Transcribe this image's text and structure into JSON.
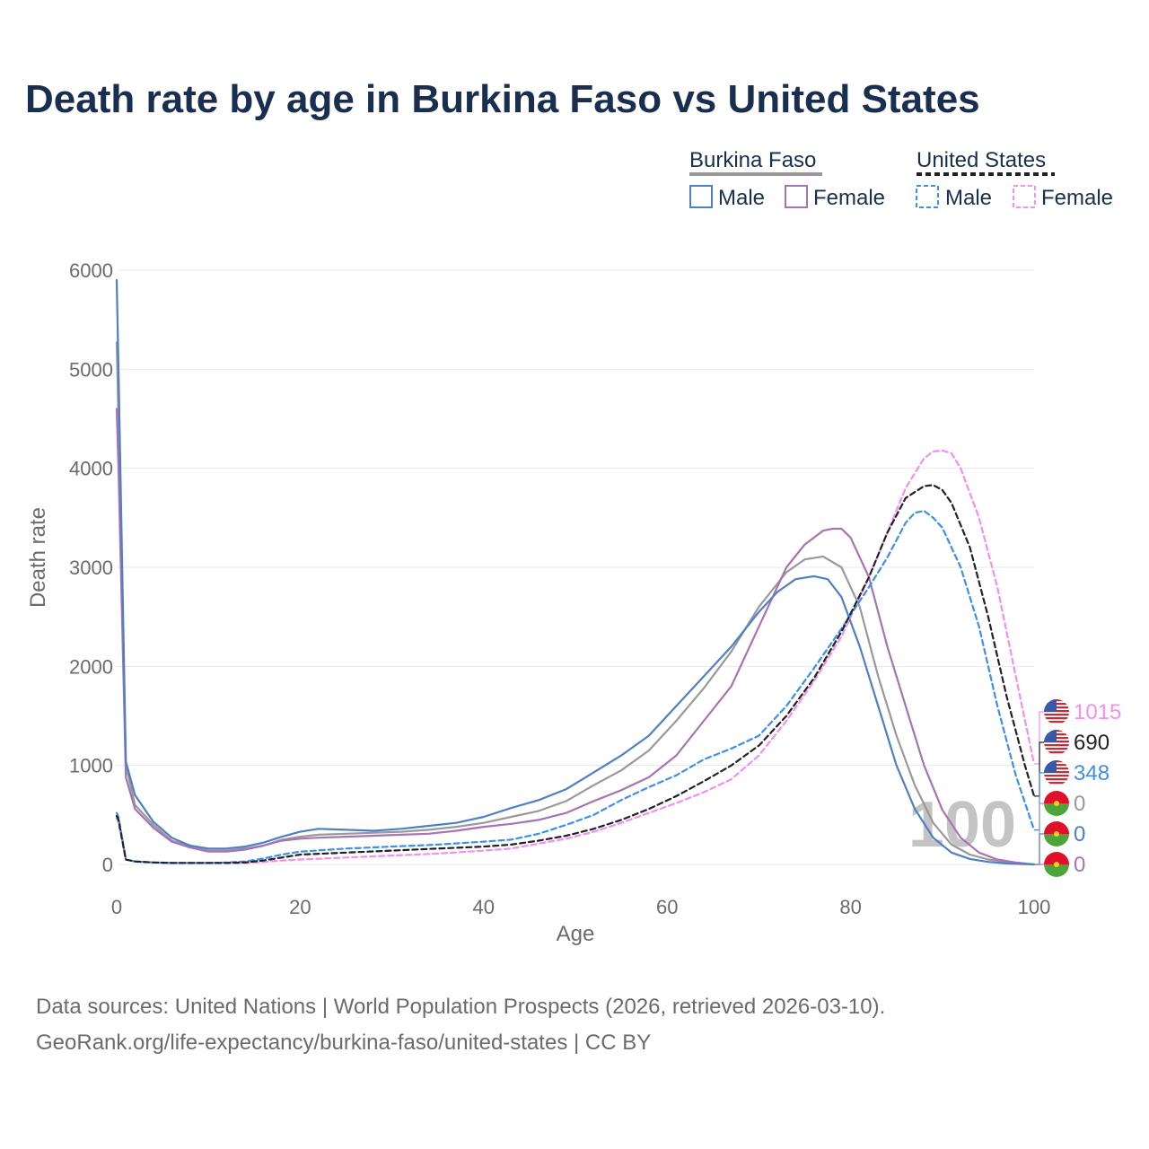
{
  "title": "Death rate by age in Burkina Faso vs United States",
  "legend": {
    "groups": [
      {
        "name": "Burkina Faso",
        "items": [
          "Male",
          "Female"
        ]
      },
      {
        "name": "United States",
        "items": [
          "Male",
          "Female"
        ]
      }
    ]
  },
  "sources": {
    "line1": "Data sources: United Nations | World Population Prospects (2026, retrieved 2026-03-10).",
    "line2": "GeoRank.org/life-expectancy/burkina-faso/united-states | CC BY"
  },
  "colors": {
    "bf_male": "#4f7fc4",
    "bf_female": "#a873b4",
    "bf_total": "#999999",
    "us_male": "#3d8fea",
    "us_female": "#f58ef0",
    "us_total": "#222222",
    "grid": "#e8e8e8",
    "axis_text": "#6b6b6b",
    "title": "#1a2e4f",
    "watermark": "#c4c4c4",
    "flag_bf_red": "#e0102b",
    "flag_bf_green": "#4fa33b",
    "flag_bf_star": "#f2d211",
    "flag_us_red": "#d22630",
    "flag_us_blue": "#3b5aa6"
  },
  "chart_data": {
    "type": "line",
    "title": "Death rate by age in Burkina Faso vs United States",
    "xlabel": "Age",
    "ylabel": "Death rate",
    "xlim": [
      0,
      100
    ],
    "ylim": [
      0,
      6000
    ],
    "xticks": [
      0,
      20,
      40,
      60,
      80,
      100
    ],
    "yticks": [
      0,
      1000,
      2000,
      3000,
      4000,
      5000,
      6000
    ],
    "grid": true,
    "legend_position": "top-right",
    "current_age_label": "100",
    "series": [
      {
        "name": "Burkina Faso Total",
        "key": "bf_total",
        "country": "Burkina Faso",
        "style": "solid",
        "x": [
          0,
          0.2,
          1,
          2,
          4,
          6,
          8,
          10,
          12,
          14,
          16,
          18,
          20,
          22,
          25,
          28,
          31,
          34,
          37,
          40,
          43,
          46,
          49,
          52,
          55,
          58,
          61,
          64,
          67,
          70,
          73,
          75,
          77,
          79,
          81,
          83,
          85,
          87,
          89,
          91,
          93,
          95,
          97,
          100
        ],
        "y": [
          5270,
          4500,
          1000,
          600,
          400,
          240,
          180,
          140,
          140,
          160,
          190,
          250,
          280,
          300,
          310,
          320,
          330,
          350,
          380,
          420,
          480,
          540,
          640,
          800,
          950,
          1150,
          1450,
          1780,
          2150,
          2600,
          2950,
          3080,
          3110,
          3000,
          2600,
          1900,
          1300,
          800,
          420,
          200,
          100,
          50,
          25,
          0
        ]
      },
      {
        "name": "Burkina Faso Male",
        "key": "bf_male",
        "country": "Burkina Faso",
        "style": "solid",
        "x": [
          0,
          0.2,
          1,
          2,
          4,
          6,
          8,
          10,
          12,
          14,
          16,
          18,
          20,
          22,
          25,
          28,
          31,
          34,
          37,
          40,
          43,
          46,
          49,
          52,
          55,
          58,
          61,
          64,
          67,
          70,
          72,
          74,
          76,
          77.5,
          79,
          81,
          83,
          85,
          87,
          89,
          91,
          93,
          95,
          97,
          100
        ],
        "y": [
          5900,
          5000,
          1040,
          700,
          430,
          270,
          190,
          160,
          160,
          180,
          220,
          280,
          330,
          360,
          350,
          340,
          360,
          390,
          420,
          480,
          570,
          650,
          760,
          930,
          1100,
          1300,
          1600,
          1900,
          2200,
          2550,
          2750,
          2880,
          2910,
          2880,
          2700,
          2200,
          1600,
          1000,
          560,
          270,
          120,
          55,
          25,
          10,
          0
        ]
      },
      {
        "name": "Burkina Faso Female",
        "key": "bf_female",
        "country": "Burkina Faso",
        "style": "solid",
        "x": [
          0,
          0.2,
          1,
          2,
          4,
          6,
          8,
          10,
          12,
          14,
          16,
          18,
          20,
          22,
          25,
          28,
          31,
          34,
          37,
          40,
          43,
          46,
          49,
          52,
          55,
          58,
          61,
          64,
          67,
          70,
          73,
          75,
          77,
          78,
          79,
          80,
          82,
          84,
          86,
          88,
          90,
          92,
          94,
          96,
          98,
          100
        ],
        "y": [
          4600,
          4000,
          880,
          560,
          370,
          230,
          170,
          130,
          130,
          150,
          190,
          240,
          260,
          270,
          280,
          290,
          300,
          310,
          340,
          380,
          410,
          450,
          520,
          640,
          750,
          880,
          1100,
          1450,
          1800,
          2400,
          3000,
          3230,
          3370,
          3390,
          3390,
          3300,
          2900,
          2200,
          1600,
          1000,
          550,
          270,
          120,
          50,
          20,
          0
        ]
      },
      {
        "name": "United States Total",
        "key": "us_total",
        "country": "United States",
        "style": "dashed",
        "x": [
          0,
          0.2,
          1,
          2,
          4,
          6,
          8,
          10,
          12,
          14,
          16,
          18,
          20,
          25,
          30,
          35,
          40,
          43,
          46,
          49,
          52,
          55,
          58,
          61,
          64,
          67,
          70,
          73,
          76,
          79,
          82,
          84,
          86,
          88,
          89,
          90,
          91,
          93,
          95,
          97,
          99,
          100
        ],
        "y": [
          490,
          450,
          50,
          30,
          20,
          15,
          15,
          15,
          15,
          20,
          40,
          70,
          100,
          120,
          140,
          160,
          180,
          200,
          240,
          290,
          360,
          450,
          560,
          690,
          840,
          1000,
          1200,
          1500,
          1880,
          2350,
          2900,
          3350,
          3700,
          3820,
          3830,
          3780,
          3650,
          3200,
          2500,
          1700,
          1000,
          690
        ]
      },
      {
        "name": "United States Male",
        "key": "us_male",
        "country": "United States",
        "style": "dashed",
        "x": [
          0,
          0.2,
          1,
          2,
          4,
          6,
          8,
          10,
          12,
          14,
          16,
          18,
          20,
          25,
          30,
          35,
          40,
          43,
          46,
          49,
          52,
          55,
          58,
          61,
          64,
          67,
          70,
          73,
          76,
          79,
          82,
          84,
          86,
          87,
          88,
          89,
          90,
          92,
          94,
          96,
          98,
          100
        ],
        "y": [
          520,
          480,
          50,
          30,
          20,
          15,
          15,
          15,
          20,
          30,
          60,
          100,
          130,
          160,
          180,
          200,
          230,
          250,
          310,
          400,
          500,
          650,
          780,
          900,
          1060,
          1170,
          1300,
          1600,
          1980,
          2380,
          2800,
          3100,
          3450,
          3550,
          3570,
          3500,
          3400,
          3000,
          2400,
          1600,
          900,
          348
        ]
      },
      {
        "name": "United States Female",
        "key": "us_female",
        "country": "United States",
        "style": "dashed",
        "x": [
          0,
          0.2,
          1,
          2,
          4,
          6,
          8,
          10,
          12,
          14,
          16,
          18,
          20,
          25,
          30,
          35,
          40,
          43,
          46,
          49,
          52,
          55,
          58,
          61,
          64,
          67,
          70,
          73,
          76,
          79,
          82,
          84,
          86,
          88,
          89,
          90,
          91,
          92,
          94,
          96,
          98,
          100
        ],
        "y": [
          470,
          420,
          50,
          30,
          20,
          15,
          15,
          15,
          15,
          15,
          25,
          40,
          50,
          70,
          90,
          110,
          140,
          160,
          210,
          260,
          330,
          420,
          520,
          620,
          730,
          860,
          1100,
          1450,
          1850,
          2300,
          2900,
          3350,
          3800,
          4100,
          4170,
          4180,
          4150,
          4000,
          3500,
          2800,
          1900,
          1015
        ]
      }
    ],
    "end_markers": [
      {
        "series": "us_female",
        "label": "1015",
        "flag": "us"
      },
      {
        "series": "us_total",
        "label": "690",
        "flag": "us"
      },
      {
        "series": "us_male",
        "label": "348",
        "flag": "us"
      },
      {
        "series": "bf_total",
        "label": "0",
        "flag": "bf"
      },
      {
        "series": "bf_male",
        "label": "0",
        "flag": "bf"
      },
      {
        "series": "bf_female",
        "label": "0",
        "flag": "bf"
      }
    ]
  }
}
